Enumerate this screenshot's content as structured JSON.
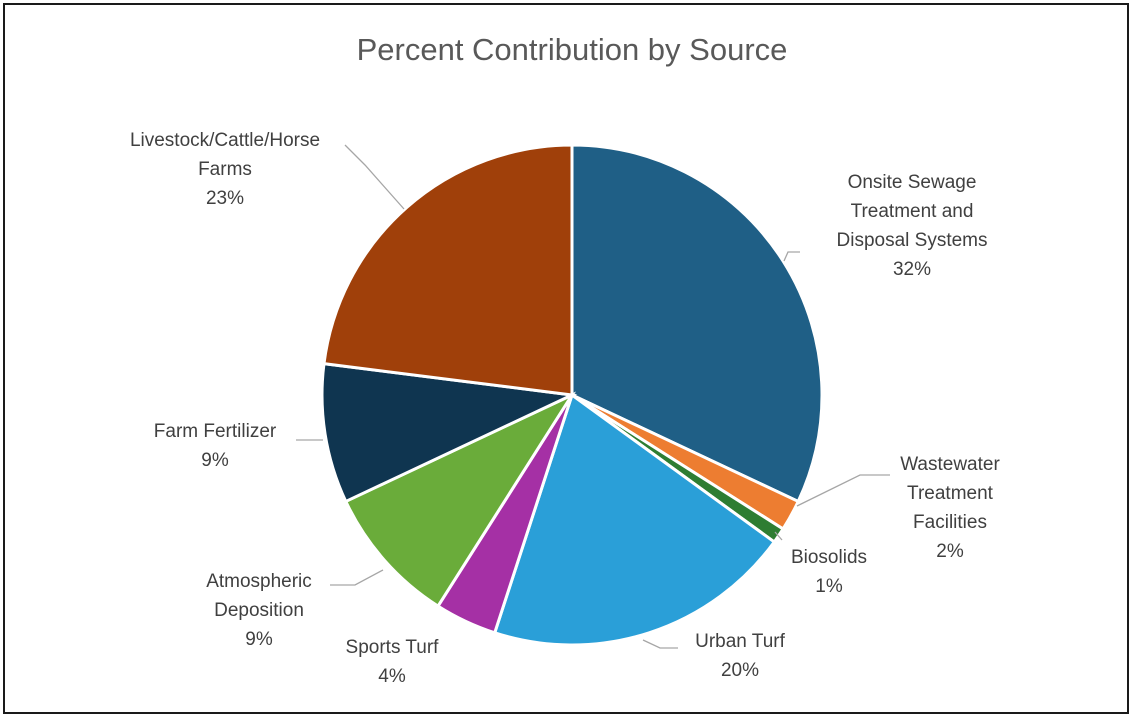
{
  "chart_data": {
    "type": "pie",
    "title": "Percent Contribution by Source",
    "slices": [
      {
        "label_lines": [
          "Onsite Sewage",
          "Treatment and",
          "Disposal Systems"
        ],
        "value": 32,
        "value_label": "32%",
        "color": "#1f5f86"
      },
      {
        "label_lines": [
          "Wastewater",
          "Treatment",
          "Facilities"
        ],
        "value": 2,
        "value_label": "2%",
        "color": "#ed7d31"
      },
      {
        "label_lines": [
          "Biosolids"
        ],
        "value": 1,
        "value_label": "1%",
        "color": "#2e7d32"
      },
      {
        "label_lines": [
          "Urban Turf"
        ],
        "value": 20,
        "value_label": "20%",
        "color": "#2a9fd8"
      },
      {
        "label_lines": [
          "Sports Turf"
        ],
        "value": 4,
        "value_label": "4%",
        "color": "#a530a5"
      },
      {
        "label_lines": [
          "Atmospheric",
          "Deposition"
        ],
        "value": 9,
        "value_label": "9%",
        "color": "#6aac3a"
      },
      {
        "label_lines": [
          "Farm Fertilizer"
        ],
        "value": 9,
        "value_label": "9%",
        "color": "#0f3550"
      },
      {
        "label_lines": [
          "Livestock/Cattle/Horse",
          "Farms"
        ],
        "value": 23,
        "value_label": "23%",
        "color": "#a0400a"
      }
    ]
  }
}
